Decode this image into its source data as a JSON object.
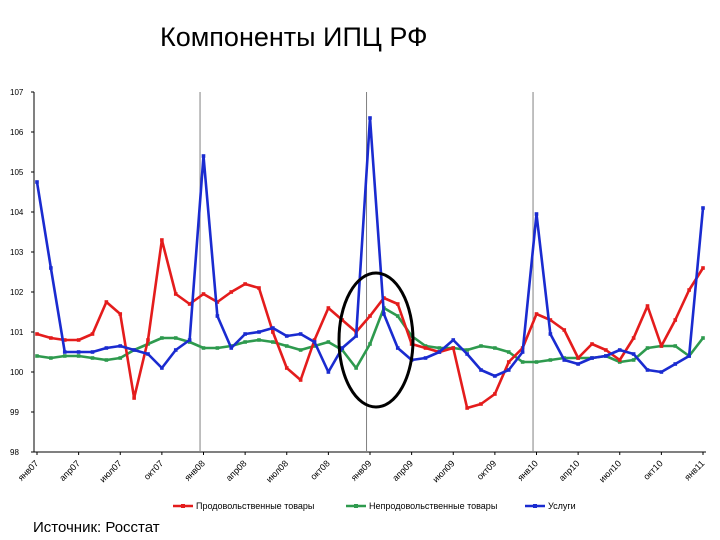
{
  "page": {
    "title": "Компоненты ИПЦ РФ",
    "source": "Источник: Росстат"
  },
  "chart_data": {
    "type": "line",
    "title": "",
    "xlabel": "",
    "ylabel": "",
    "ylim": [
      98,
      107
    ],
    "yticks": [
      "107",
      "106",
      "105",
      "104",
      "103",
      "102",
      "101",
      "100",
      "99",
      "98"
    ],
    "x_tick_labels": [
      "янв07",
      "апр07",
      "июл07",
      "окт07",
      "янв08",
      "апр08",
      "июл08",
      "окт08",
      "янв09",
      "апр09",
      "июл09",
      "окт09",
      "янв10",
      "апр10",
      "июл10",
      "окт10",
      "янв11"
    ],
    "grid": "vertical year separators",
    "legend_position": "bottom",
    "colors": {
      "food": "#e41c1c",
      "nonfood": "#2e9a4e",
      "services": "#1a2bd0",
      "highlight": "#000000"
    },
    "series": [
      {
        "name": "Продовольственные товары",
        "color": "#e41c1c",
        "values": [
          100.95,
          100.85,
          100.8,
          100.8,
          100.95,
          101.75,
          101.45,
          99.35,
          100.8,
          103.3,
          101.95,
          101.7,
          101.95,
          101.75,
          102.0,
          102.2,
          102.1,
          101.0,
          100.1,
          99.8,
          100.8,
          101.6,
          101.3,
          101.0,
          101.4,
          101.85,
          101.7,
          100.7,
          100.6,
          100.5,
          100.6,
          99.1,
          99.2,
          99.45,
          100.25,
          100.6,
          101.45,
          101.3,
          101.05,
          100.35,
          100.7,
          100.55,
          100.3,
          100.85,
          101.65,
          100.65,
          101.3,
          102.05,
          102.6
        ]
      },
      {
        "name": "Непродовольственные товары",
        "color": "#2e9a4e",
        "values": [
          100.4,
          100.35,
          100.4,
          100.4,
          100.35,
          100.3,
          100.35,
          100.55,
          100.7,
          100.85,
          100.85,
          100.75,
          100.6,
          100.6,
          100.65,
          100.75,
          100.8,
          100.75,
          100.65,
          100.55,
          100.65,
          100.75,
          100.55,
          100.1,
          100.7,
          101.6,
          101.4,
          100.9,
          100.65,
          100.6,
          100.6,
          100.55,
          100.65,
          100.6,
          100.5,
          100.25,
          100.25,
          100.3,
          100.35,
          100.35,
          100.35,
          100.4,
          100.25,
          100.3,
          100.6,
          100.65,
          100.65,
          100.4,
          100.85
        ]
      },
      {
        "name": "Услуги",
        "color": "#1a2bd0",
        "values": [
          104.75,
          102.6,
          100.5,
          100.5,
          100.5,
          100.6,
          100.65,
          100.55,
          100.45,
          100.1,
          100.55,
          100.8,
          105.4,
          101.4,
          100.6,
          100.95,
          101.0,
          101.1,
          100.9,
          100.95,
          100.75,
          100.0,
          100.6,
          100.9,
          106.35,
          101.45,
          100.6,
          100.3,
          100.35,
          100.5,
          100.8,
          100.45,
          100.05,
          99.9,
          100.05,
          100.5,
          103.95,
          100.95,
          100.3,
          100.2,
          100.35,
          100.4,
          100.55,
          100.45,
          100.05,
          100.0,
          100.2,
          100.4,
          104.1
        ]
      }
    ],
    "annotations": [
      "ellipse-highlight"
    ]
  }
}
